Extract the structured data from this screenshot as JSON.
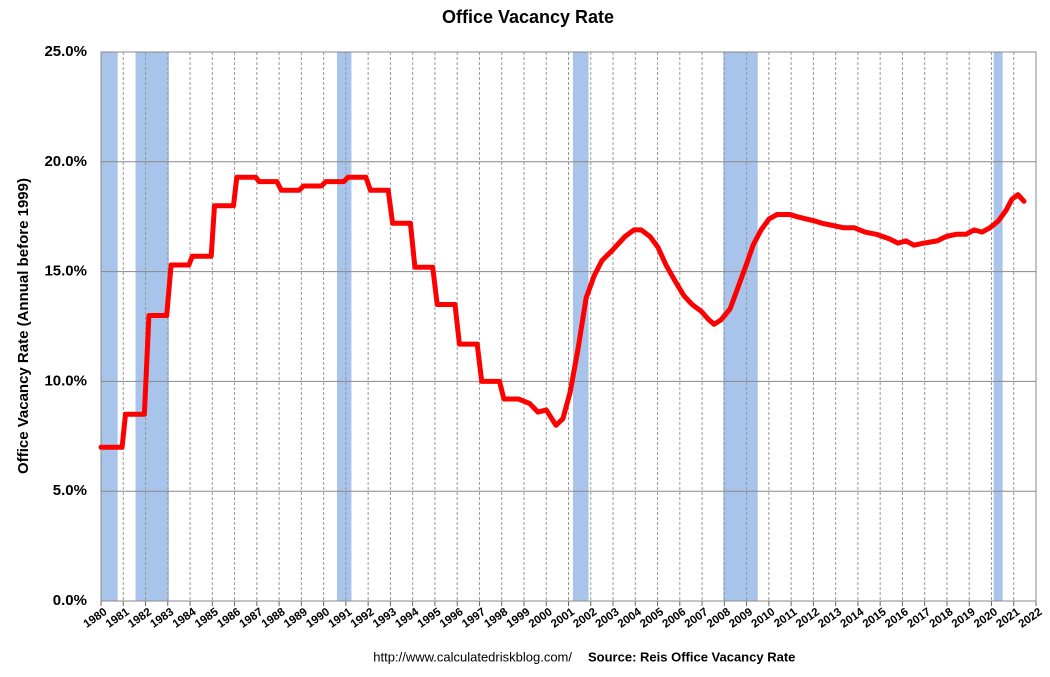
{
  "chart_data": {
    "type": "line",
    "title": "Office Vacancy Rate",
    "y_label": "Office Vacancy Rate (Annual before 1999)",
    "footer_url": "http://www.calculatedriskblog.com/",
    "footer_source": "Source: Reis Office Vacancy Rate",
    "xlim": [
      1980,
      2022
    ],
    "xticks": [
      1980,
      1981,
      1982,
      1983,
      1984,
      1985,
      1986,
      1987,
      1988,
      1989,
      1990,
      1991,
      1992,
      1993,
      1994,
      1995,
      1996,
      1997,
      1998,
      1999,
      2000,
      2001,
      2002,
      2003,
      2004,
      2005,
      2006,
      2007,
      2008,
      2009,
      2010,
      2011,
      2012,
      2013,
      2014,
      2015,
      2016,
      2017,
      2018,
      2019,
      2020,
      2021,
      2022
    ],
    "ylim": [
      0,
      25
    ],
    "yticks": [
      {
        "value": 0,
        "label": "0.0%"
      },
      {
        "value": 5,
        "label": "5.0%"
      },
      {
        "value": 10,
        "label": "10.0%"
      },
      {
        "value": 15,
        "label": "15.0%"
      },
      {
        "value": 20,
        "label": "20.0%"
      },
      {
        "value": 25,
        "label": "25.0%"
      }
    ],
    "grid": true,
    "recession_color": "#a9c4eb",
    "recessions": [
      {
        "start": 1980.0,
        "end": 1980.75
      },
      {
        "start": 1981.55,
        "end": 1983.05
      },
      {
        "start": 1990.6,
        "end": 1991.25
      },
      {
        "start": 2001.2,
        "end": 2001.9
      },
      {
        "start": 2007.95,
        "end": 2009.5
      },
      {
        "start": 2020.1,
        "end": 2020.5
      }
    ],
    "series": [
      {
        "name": "Office Vacancy Rate",
        "color": "#ff0000",
        "x": [
          1980,
          1980.95,
          1981.1,
          1981.95,
          1982.15,
          1982.95,
          1983.15,
          1983.95,
          1984.1,
          1984.95,
          1985.1,
          1985.95,
          1986.1,
          1986.95,
          1987.1,
          1987.9,
          1988.1,
          1988.9,
          1989.1,
          1989.9,
          1990.1,
          1990.9,
          1991.1,
          1991.9,
          1992.1,
          1992.9,
          1993.1,
          1993.9,
          1994.1,
          1994.9,
          1995.1,
          1995.9,
          1996.1,
          1996.9,
          1997.1,
          1997.9,
          1998.1,
          1998.75,
          1999.25,
          1999.63,
          2000.0,
          2000.44,
          2000.75,
          2001.07,
          2001.43,
          2001.79,
          2002.15,
          2002.5,
          2003.0,
          2003.54,
          2003.94,
          2004.26,
          2004.66,
          2005.02,
          2005.38,
          2005.83,
          2006.19,
          2006.55,
          2006.95,
          2007.31,
          2007.54,
          2007.85,
          2008.26,
          2008.62,
          2008.98,
          2009.29,
          2009.65,
          2010.01,
          2010.37,
          2010.95,
          2011.27,
          2011.67,
          2012.08,
          2012.39,
          2012.88,
          2013.33,
          2013.83,
          2014.32,
          2014.82,
          2015.4,
          2015.8,
          2016.16,
          2016.52,
          2016.97,
          2017.56,
          2017.96,
          2018.41,
          2018.86,
          2019.22,
          2019.58,
          2019.94,
          2020.3,
          2020.66,
          2020.92,
          2021.19,
          2021.46
        ],
        "values": [
          7.0,
          7.0,
          8.5,
          8.5,
          13.0,
          13.0,
          15.3,
          15.3,
          15.7,
          15.7,
          18.0,
          18.0,
          19.3,
          19.3,
          19.1,
          19.1,
          18.7,
          18.7,
          18.9,
          18.9,
          19.1,
          19.1,
          19.3,
          19.3,
          18.7,
          18.7,
          17.2,
          17.2,
          15.2,
          15.2,
          13.5,
          13.5,
          11.7,
          11.7,
          10.0,
          10.0,
          9.2,
          9.2,
          9.0,
          8.6,
          8.7,
          8.0,
          8.3,
          9.5,
          11.5,
          13.8,
          14.8,
          15.5,
          16.0,
          16.6,
          16.9,
          16.9,
          16.6,
          16.1,
          15.3,
          14.5,
          13.9,
          13.5,
          13.2,
          12.8,
          12.6,
          12.8,
          13.3,
          14.3,
          15.3,
          16.2,
          16.9,
          17.4,
          17.6,
          17.6,
          17.5,
          17.4,
          17.3,
          17.2,
          17.1,
          17.0,
          17.0,
          16.8,
          16.7,
          16.5,
          16.3,
          16.4,
          16.2,
          16.3,
          16.4,
          16.6,
          16.7,
          16.7,
          16.9,
          16.8,
          17.0,
          17.3,
          17.8,
          18.3,
          18.5,
          18.2
        ]
      }
    ]
  }
}
